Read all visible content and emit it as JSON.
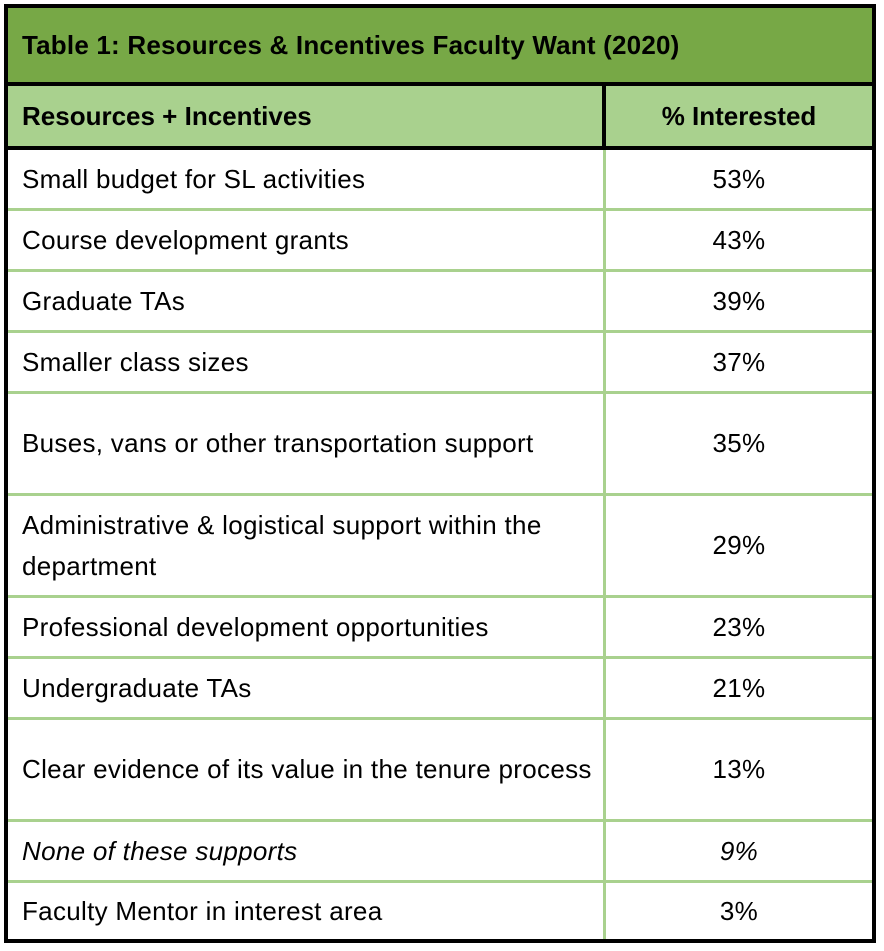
{
  "chart_data": {
    "type": "table",
    "title": "Table 1:  Resources & Incentives Faculty Want (2020)",
    "columns": [
      "Resources + Incentives",
      "% Interested"
    ],
    "rows": [
      {
        "label": "Small budget for SL activities",
        "value": "53%",
        "lines": 1
      },
      {
        "label": "Course development grants",
        "value": "43%",
        "lines": 1
      },
      {
        "label": "Graduate TAs",
        "value": "39%",
        "lines": 1
      },
      {
        "label": "Smaller class sizes",
        "value": "37%",
        "lines": 1
      },
      {
        "label": "Buses, vans or other transportation support",
        "value": "35%",
        "lines": 2
      },
      {
        "label": "Administrative & logistical support within the department",
        "value": "29%",
        "lines": 2
      },
      {
        "label": "Professional development opportunities",
        "value": "23%",
        "lines": 1
      },
      {
        "label": "Undergraduate TAs",
        "value": "21%",
        "lines": 1
      },
      {
        "label": "Clear evidence of its value in the tenure process",
        "value": "13%",
        "lines": 2
      },
      {
        "label": "None of these supports",
        "value": "9%",
        "lines": 1,
        "italic": true
      },
      {
        "label": "Faculty Mentor in interest area",
        "value": "3%",
        "lines": 1
      }
    ]
  },
  "colors": {
    "title_bar": "#77a846",
    "header_row": "#a9d18e",
    "grid_line": "#a9d18e",
    "border": "#000000"
  }
}
